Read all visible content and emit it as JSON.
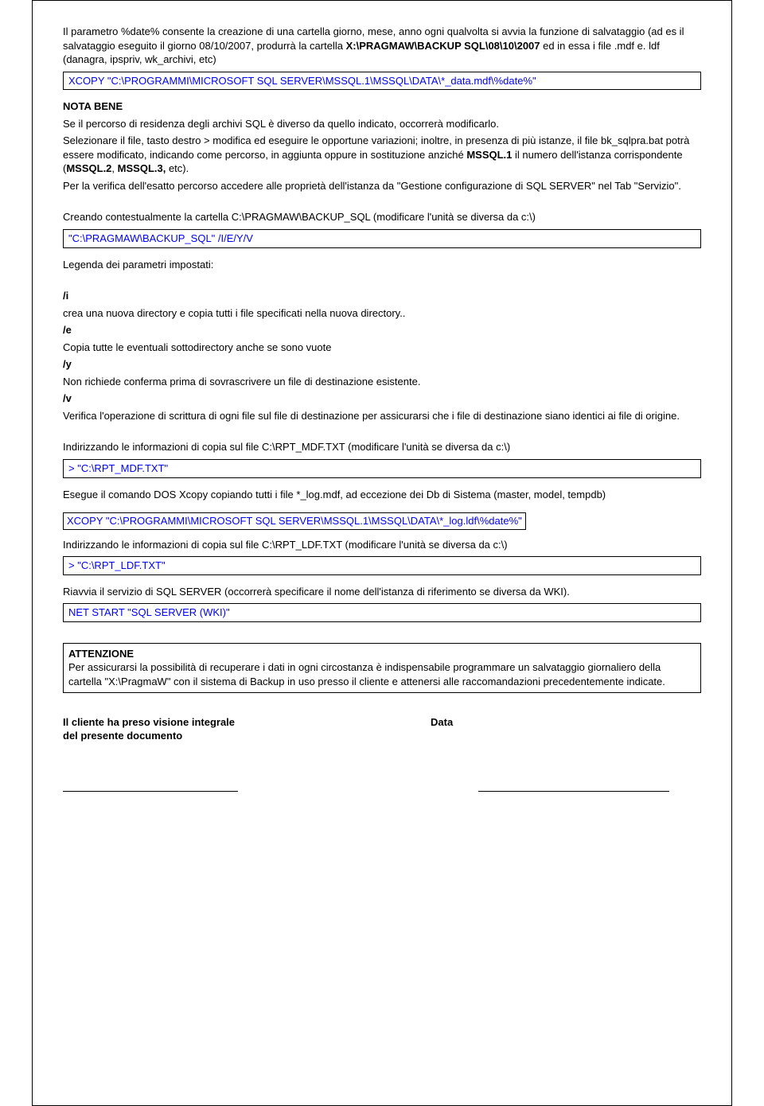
{
  "p1": "Il parametro %date% consente la creazione di una cartella giorno, mese, anno ogni qualvolta si avvia la funzione di salvataggio (ad es il salvataggio eseguito il giorno 08/10/2007, produrrà la cartella ",
  "p1b": "X:\\PRAGMAW\\BACKUP SQL\\08\\10\\2007",
  "p1c": " ed in essa i file .mdf e. ldf (danagra, ipspriv, wk_archivi, etc)",
  "code1": "XCOPY \"C:\\PROGRAMMI\\MICROSOFT SQL SERVER\\MSSQL.1\\MSSQL\\DATA\\*_data.mdf\\%date%\"",
  "nota_title": "NOTA BENE",
  "nota1": "Se il percorso di residenza degli archivi SQL è diverso da quello indicato, occorrerà modificarlo.",
  "nota2a": "Selezionare il file, tasto destro > modifica ed eseguire le opportune variazioni; inoltre, in presenza di più istanze, il file bk_sqlpra.bat potrà essere modificato, indicando come percorso, in aggiunta oppure in sostituzione anziché ",
  "nota2b": "MSSQL.1",
  "nota2c": " il numero dell'istanza corrispondente (",
  "nota2d": "MSSQL.2",
  "nota2e": ",  ",
  "nota2f": "MSSQL.3,",
  "nota2g": " etc).",
  "nota3": "Per la verifica dell'esatto percorso accedere alle proprietà dell'istanza da \"Gestione configurazione di SQL SERVER\" nel Tab \"Servizio\".",
  "p2": "Creando contestualmente la cartella C:\\PRAGMAW\\BACKUP_SQL (modificare l'unità se diversa da c:\\)",
  "code2": "\"C:\\PRAGMAW\\BACKUP_SQL\" /I/E/Y/V",
  "legenda": "Legenda dei parametri impostati:",
  "pi_t": "/i",
  "pi_d": "crea una nuova directory e copia tutti i file specificati nella nuova directory..",
  "pe_t": "/e",
  "pe_d": "Copia tutte le eventuali sottodirectory anche se sono vuote",
  "py_t": "/y",
  "py_d": "Non richiede conferma prima di sovrascrivere un file di destinazione esistente.",
  "pv_t": "/v",
  "pv_d": "Verifica l'operazione di scrittura di ogni file sul file di destinazione per assicurarsi che i file di destinazione siano identici ai file di origine.",
  "p3": "Indirizzando le informazioni di copia sul file C:\\RPT_MDF.TXT (modificare l'unità se diversa da c:\\)",
  "code3": "  > \"C:\\RPT_MDF.TXT\"",
  "p4": "Esegue il comando DOS Xcopy  copiando tutti i file *_log.mdf, ad eccezione dei Db di Sistema (master, model, tempdb)",
  "code4": "XCOPY \"C:\\PROGRAMMI\\MICROSOFT SQL SERVER\\MSSQL.1\\MSSQL\\DATA\\*_log.ldf\\%date%\"",
  "p5": "Indirizzando le informazioni di copia sul file C:\\RPT_LDF.TXT (modificare l'unità se diversa da c:\\)",
  "code5": "  > \"C:\\RPT_LDF.TXT\"",
  "p6": "Riavvia il servizio di SQL SERVER (occorrerà specificare il nome dell'istanza di riferimento se diversa da WKI).",
  "code6": "NET START \"SQL SERVER (WKI)\"",
  "att_title": "ATTENZIONE",
  "att_body": "Per assicurarsi la possibilità di recuperare i dati in ogni circostanza è indispensabile programmare un salvataggio giornaliero della cartella \"X:\\PragmaW\" con il sistema di Backup in uso presso il cliente e attenersi alle raccomandazioni precedentemente indicate.",
  "sig1": "Il cliente ha preso visione integrale",
  "sig2": "del presente documento",
  "sig_data": "Data"
}
